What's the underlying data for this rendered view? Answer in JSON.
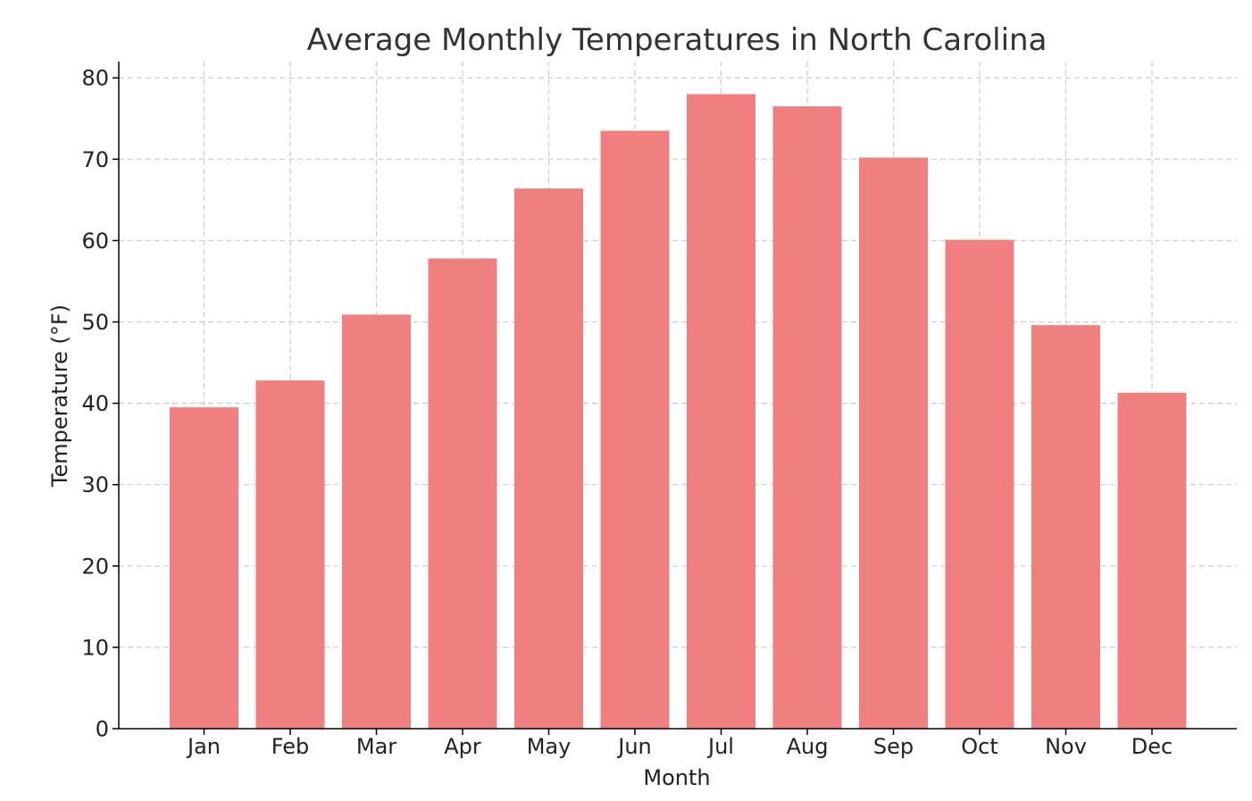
{
  "chart_data": {
    "type": "bar",
    "title": "Average Monthly Temperatures in North Carolina",
    "xlabel": "Month",
    "ylabel": "Temperature (°F)",
    "categories": [
      "Jan",
      "Feb",
      "Mar",
      "Apr",
      "May",
      "Jun",
      "Jul",
      "Aug",
      "Sep",
      "Oct",
      "Nov",
      "Dec"
    ],
    "values": [
      39.5,
      42.8,
      50.9,
      57.8,
      66.4,
      73.5,
      78.0,
      76.5,
      70.2,
      60.1,
      49.6,
      41.3
    ],
    "ylim": [
      0,
      82
    ],
    "yticks": [
      0,
      10,
      20,
      30,
      40,
      50,
      60,
      70,
      80
    ],
    "grid": true,
    "grid_style": "dashed",
    "bar_color": "#f08080",
    "grid_color": "#cccccc",
    "axis_color": "#000000"
  }
}
